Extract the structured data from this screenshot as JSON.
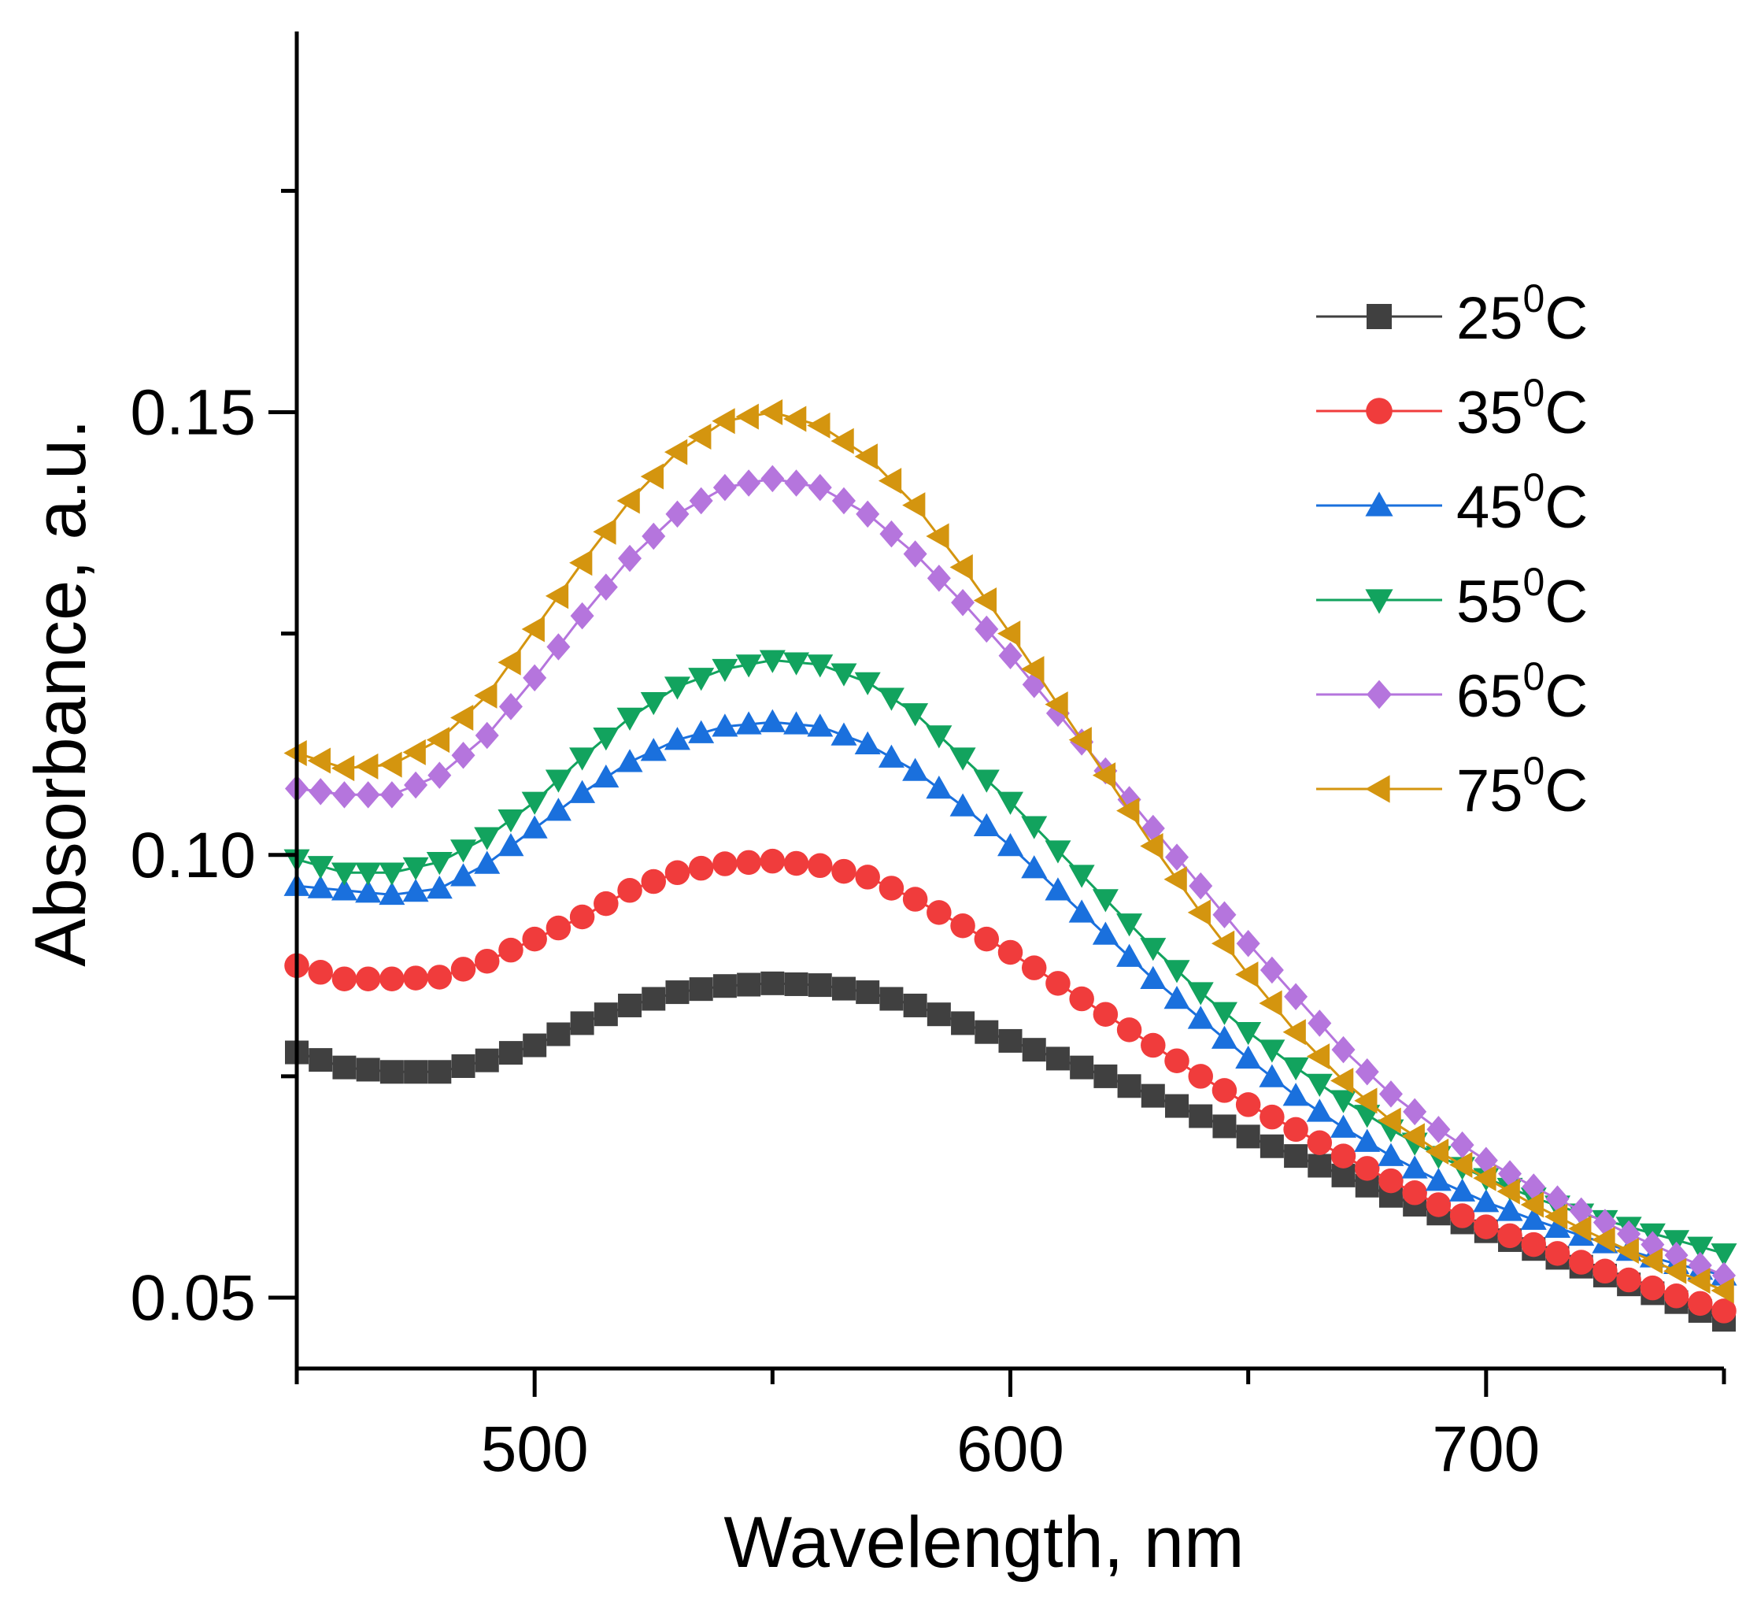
{
  "chart_data": {
    "type": "line",
    "xlabel": "Wavelength, nm",
    "ylabel": "Absorbance, a.u.",
    "xlim": [
      450,
      750
    ],
    "ylim": [
      0.042,
      0.193
    ],
    "xticks": [
      500,
      600,
      700
    ],
    "xtick_labels": [
      "500",
      "600",
      "700"
    ],
    "yticks": [
      0.05,
      0.1,
      0.15
    ],
    "ytick_labels": [
      "0.05",
      "0.10",
      "0.15"
    ],
    "legend_position": "upper-right",
    "marker_spacing_nm": 5,
    "series": [
      {
        "name": "25",
        "sup": "0",
        "unit": "C",
        "marker": "square",
        "color": "#404040",
        "anchors": [
          [
            450,
            0.0777
          ],
          [
            460,
            0.076
          ],
          [
            470,
            0.0755
          ],
          [
            480,
            0.0755
          ],
          [
            490,
            0.0768
          ],
          [
            500,
            0.0785
          ],
          [
            510,
            0.081
          ],
          [
            520,
            0.083
          ],
          [
            530,
            0.0845
          ],
          [
            540,
            0.0852
          ],
          [
            550,
            0.0855
          ],
          [
            560,
            0.0853
          ],
          [
            570,
            0.0845
          ],
          [
            580,
            0.083
          ],
          [
            590,
            0.081
          ],
          [
            600,
            0.079
          ],
          [
            610,
            0.077
          ],
          [
            620,
            0.075
          ],
          [
            630,
            0.0728
          ],
          [
            640,
            0.0705
          ],
          [
            650,
            0.0682
          ],
          [
            660,
            0.066
          ],
          [
            670,
            0.0638
          ],
          [
            680,
            0.0615
          ],
          [
            690,
            0.0595
          ],
          [
            700,
            0.0575
          ],
          [
            710,
            0.0555
          ],
          [
            720,
            0.0535
          ],
          [
            730,
            0.0515
          ],
          [
            740,
            0.0495
          ],
          [
            750,
            0.0475
          ]
        ]
      },
      {
        "name": "35",
        "sup": "0",
        "unit": "C",
        "marker": "circle",
        "color": "#f03c3c",
        "anchors": [
          [
            450,
            0.0875
          ],
          [
            460,
            0.086
          ],
          [
            470,
            0.086
          ],
          [
            480,
            0.0862
          ],
          [
            490,
            0.088
          ],
          [
            500,
            0.0905
          ],
          [
            510,
            0.093
          ],
          [
            520,
            0.096
          ],
          [
            530,
            0.098
          ],
          [
            540,
            0.099
          ],
          [
            550,
            0.0993
          ],
          [
            560,
            0.0988
          ],
          [
            570,
            0.0975
          ],
          [
            580,
            0.095
          ],
          [
            590,
            0.092
          ],
          [
            600,
            0.089
          ],
          [
            610,
            0.0855
          ],
          [
            620,
            0.082
          ],
          [
            630,
            0.0785
          ],
          [
            640,
            0.075
          ],
          [
            650,
            0.0718
          ],
          [
            660,
            0.069
          ],
          [
            670,
            0.066
          ],
          [
            680,
            0.0632
          ],
          [
            690,
            0.0605
          ],
          [
            700,
            0.058
          ],
          [
            710,
            0.056
          ],
          [
            720,
            0.054
          ],
          [
            730,
            0.052
          ],
          [
            740,
            0.0502
          ],
          [
            750,
            0.0485
          ]
        ]
      },
      {
        "name": "45",
        "sup": "0",
        "unit": "C",
        "marker": "triangle-up",
        "color": "#1a70dd",
        "anchors": [
          [
            450,
            0.0965
          ],
          [
            460,
            0.096
          ],
          [
            470,
            0.0955
          ],
          [
            480,
            0.0962
          ],
          [
            490,
            0.099
          ],
          [
            500,
            0.103
          ],
          [
            510,
            0.107
          ],
          [
            520,
            0.1105
          ],
          [
            530,
            0.113
          ],
          [
            540,
            0.1145
          ],
          [
            550,
            0.115
          ],
          [
            560,
            0.1145
          ],
          [
            570,
            0.1125
          ],
          [
            580,
            0.1095
          ],
          [
            590,
            0.1055
          ],
          [
            600,
            0.101
          ],
          [
            610,
            0.096
          ],
          [
            620,
            0.091
          ],
          [
            630,
            0.086
          ],
          [
            640,
            0.0815
          ],
          [
            650,
            0.077
          ],
          [
            660,
            0.0728
          ],
          [
            670,
            0.0692
          ],
          [
            680,
            0.066
          ],
          [
            690,
            0.0632
          ],
          [
            700,
            0.0608
          ],
          [
            710,
            0.0588
          ],
          [
            720,
            0.057
          ],
          [
            730,
            0.0553
          ],
          [
            740,
            0.0538
          ],
          [
            750,
            0.0525
          ]
        ]
      },
      {
        "name": "55",
        "sup": "0",
        "unit": "C",
        "marker": "triangle-down",
        "color": "#12a35e",
        "anchors": [
          [
            450,
            0.0995
          ],
          [
            460,
            0.098
          ],
          [
            470,
            0.098
          ],
          [
            480,
            0.0992
          ],
          [
            490,
            0.102
          ],
          [
            500,
            0.106
          ],
          [
            510,
            0.111
          ],
          [
            520,
            0.1155
          ],
          [
            530,
            0.119
          ],
          [
            540,
            0.121
          ],
          [
            550,
            0.122
          ],
          [
            560,
            0.1215
          ],
          [
            570,
            0.1195
          ],
          [
            580,
            0.116
          ],
          [
            590,
            0.111
          ],
          [
            600,
            0.106
          ],
          [
            610,
            0.1005
          ],
          [
            620,
            0.095
          ],
          [
            630,
            0.0895
          ],
          [
            640,
            0.0845
          ],
          [
            650,
            0.08
          ],
          [
            660,
            0.076
          ],
          [
            670,
            0.0723
          ],
          [
            680,
            0.069
          ],
          [
            690,
            0.066
          ],
          [
            700,
            0.0635
          ],
          [
            710,
            0.0613
          ],
          [
            720,
            0.0595
          ],
          [
            730,
            0.058
          ],
          [
            740,
            0.0565
          ],
          [
            750,
            0.055
          ]
        ]
      },
      {
        "name": "65",
        "sup": "0",
        "unit": "C",
        "marker": "diamond",
        "color": "#b575dd",
        "anchors": [
          [
            450,
            0.1075
          ],
          [
            460,
            0.1068
          ],
          [
            470,
            0.1068
          ],
          [
            480,
            0.109
          ],
          [
            490,
            0.1135
          ],
          [
            500,
            0.12
          ],
          [
            510,
            0.127
          ],
          [
            520,
            0.1335
          ],
          [
            530,
            0.1385
          ],
          [
            540,
            0.1415
          ],
          [
            550,
            0.1425
          ],
          [
            560,
            0.1415
          ],
          [
            570,
            0.1385
          ],
          [
            580,
            0.134
          ],
          [
            590,
            0.1285
          ],
          [
            600,
            0.1225
          ],
          [
            610,
            0.116
          ],
          [
            620,
            0.1095
          ],
          [
            630,
            0.103
          ],
          [
            640,
            0.0965
          ],
          [
            650,
            0.09
          ],
          [
            660,
            0.084
          ],
          [
            670,
            0.078
          ],
          [
            680,
            0.073
          ],
          [
            690,
            0.069
          ],
          [
            700,
            0.0655
          ],
          [
            710,
            0.0625
          ],
          [
            720,
            0.0598
          ],
          [
            730,
            0.0572
          ],
          [
            740,
            0.0548
          ],
          [
            750,
            0.0525
          ]
        ]
      },
      {
        "name": "75",
        "sup": "0",
        "unit": "C",
        "marker": "triangle-left",
        "color": "#d4950f",
        "anchors": [
          [
            450,
            0.1115
          ],
          [
            460,
            0.1098
          ],
          [
            470,
            0.1102
          ],
          [
            480,
            0.113
          ],
          [
            490,
            0.118
          ],
          [
            500,
            0.1255
          ],
          [
            510,
            0.133
          ],
          [
            520,
            0.14
          ],
          [
            530,
            0.1455
          ],
          [
            540,
            0.149
          ],
          [
            550,
            0.15
          ],
          [
            560,
            0.1485
          ],
          [
            570,
            0.145
          ],
          [
            580,
            0.1395
          ],
          [
            590,
            0.1325
          ],
          [
            600,
            0.125
          ],
          [
            610,
            0.117
          ],
          [
            620,
            0.109
          ],
          [
            630,
            0.101
          ],
          [
            640,
            0.0935
          ],
          [
            650,
            0.0865
          ],
          [
            660,
            0.08
          ],
          [
            670,
            0.0745
          ],
          [
            680,
            0.07
          ],
          [
            690,
            0.0665
          ],
          [
            700,
            0.0635
          ],
          [
            710,
            0.0605
          ],
          [
            720,
            0.0578
          ],
          [
            730,
            0.0553
          ],
          [
            740,
            0.053
          ],
          [
            750,
            0.0508
          ]
        ]
      }
    ]
  }
}
